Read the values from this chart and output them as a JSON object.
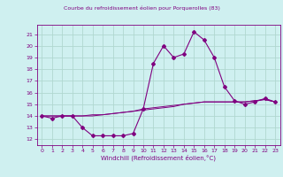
{
  "title": "Courbe du refroidissement éolien pour Porquerolles (83)",
  "xlabel": "Windchill (Refroidissement éolien,°C)",
  "background_color": "#cff0f0",
  "grid_color": "#b0d8d0",
  "line_color": "#800080",
  "xlim": [
    -0.5,
    23.5
  ],
  "ylim": [
    11.5,
    21.8
  ],
  "yticks": [
    12,
    13,
    14,
    15,
    16,
    17,
    18,
    19,
    20,
    21
  ],
  "xticks": [
    0,
    1,
    2,
    3,
    4,
    5,
    6,
    7,
    8,
    9,
    10,
    11,
    12,
    13,
    14,
    15,
    16,
    17,
    18,
    19,
    20,
    21,
    22,
    23
  ],
  "hours": [
    0,
    1,
    2,
    3,
    4,
    5,
    6,
    7,
    8,
    9,
    10,
    11,
    12,
    13,
    14,
    15,
    16,
    17,
    18,
    19,
    20,
    21,
    22,
    23
  ],
  "windchill": [
    14.0,
    13.8,
    14.0,
    14.0,
    13.0,
    12.3,
    12.3,
    12.3,
    12.3,
    12.5,
    14.6,
    18.5,
    20.0,
    19.0,
    19.3,
    21.2,
    20.5,
    19.0,
    16.5,
    15.3,
    15.0,
    15.2,
    15.5,
    15.2
  ],
  "templine": [
    14.0,
    14.0,
    14.0,
    14.0,
    14.0,
    14.1,
    14.1,
    14.2,
    14.3,
    14.4,
    14.5,
    14.6,
    14.7,
    14.8,
    15.0,
    15.1,
    15.2,
    15.2,
    15.2,
    15.2,
    15.2,
    15.3,
    15.4,
    15.2
  ],
  "templine2": [
    14.0,
    14.0,
    14.0,
    14.0,
    14.0,
    14.0,
    14.1,
    14.2,
    14.3,
    14.4,
    14.6,
    14.7,
    14.8,
    14.9,
    15.0,
    15.1,
    15.2,
    15.2,
    15.2,
    15.2,
    15.2,
    15.3,
    15.4,
    15.2
  ],
  "title_fontsize": 4.5,
  "tick_fontsize": 4.5,
  "xlabel_fontsize": 5.0
}
